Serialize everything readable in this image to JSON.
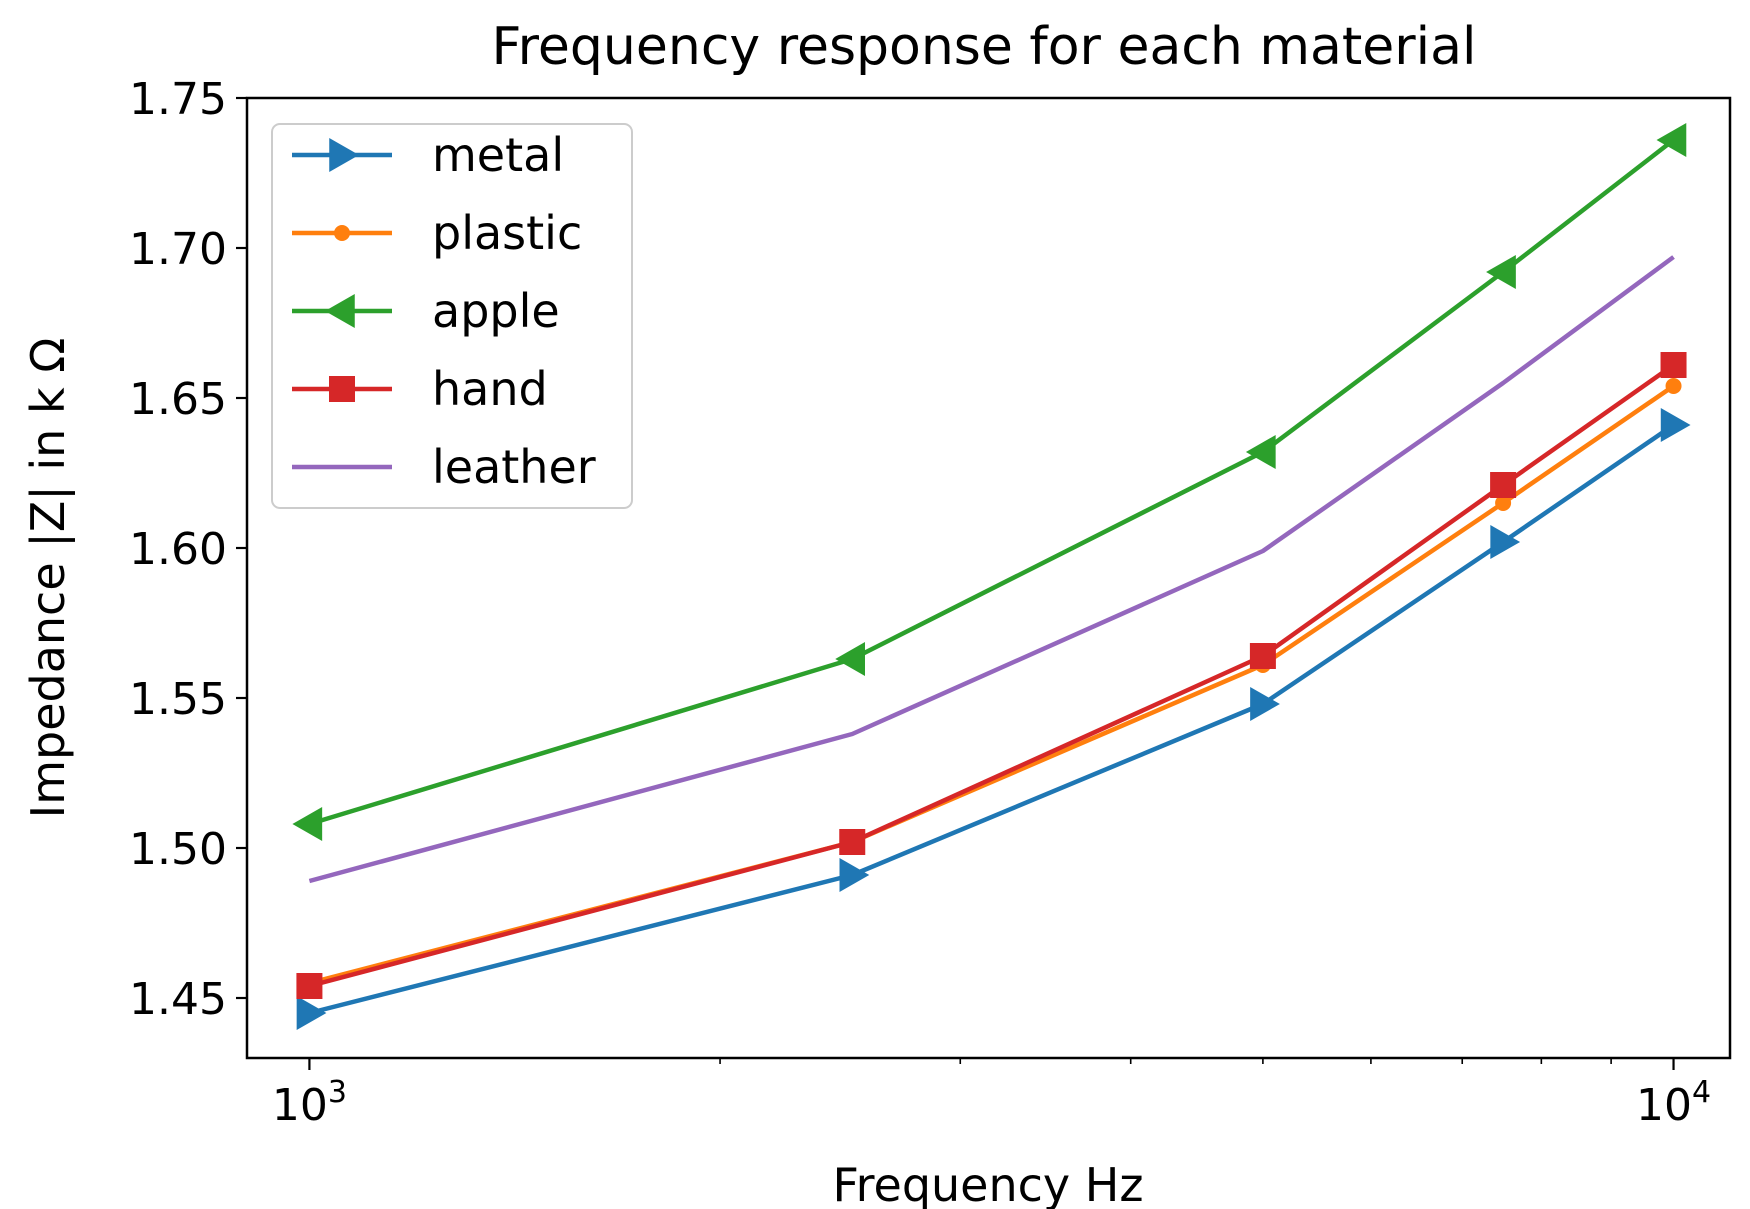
{
  "chart_data": {
    "type": "line",
    "title": "Frequency response for each material",
    "xlabel": "Frequency Hz",
    "ylabel": "Impedance |Z| in k Ω",
    "xscale": "log",
    "xlim": [
      900,
      11000
    ],
    "ylim": [
      1.43,
      1.75
    ],
    "x": [
      1000,
      2500,
      5000,
      7500,
      10000
    ],
    "yticks": [
      1.45,
      1.5,
      1.55,
      1.6,
      1.65,
      1.7,
      1.75
    ],
    "ytick_labels": [
      "1.45",
      "1.50",
      "1.55",
      "1.60",
      "1.65",
      "1.70",
      "1.75"
    ],
    "xticks": [
      {
        "value": 1000,
        "base": "10",
        "exp": "3"
      },
      {
        "value": 10000,
        "base": "10",
        "exp": "4"
      }
    ],
    "legend_position": "top-left",
    "series": [
      {
        "name": "metal",
        "color": "#1f77b4",
        "marker": "triangle-right",
        "values": [
          1.445,
          1.491,
          1.548,
          1.602,
          1.641
        ]
      },
      {
        "name": "plastic",
        "color": "#ff7f0e",
        "marker": "circle",
        "values": [
          1.455,
          1.502,
          1.561,
          1.615,
          1.654
        ]
      },
      {
        "name": "apple",
        "color": "#2ca02c",
        "marker": "triangle-left",
        "values": [
          1.508,
          1.563,
          1.632,
          1.692,
          1.736
        ]
      },
      {
        "name": "hand",
        "color": "#d62728",
        "marker": "square",
        "values": [
          1.454,
          1.502,
          1.564,
          1.621,
          1.661
        ]
      },
      {
        "name": "leather",
        "color": "#9467bd",
        "marker": "none",
        "values": [
          1.489,
          1.538,
          1.599,
          1.655,
          1.697
        ]
      }
    ]
  }
}
